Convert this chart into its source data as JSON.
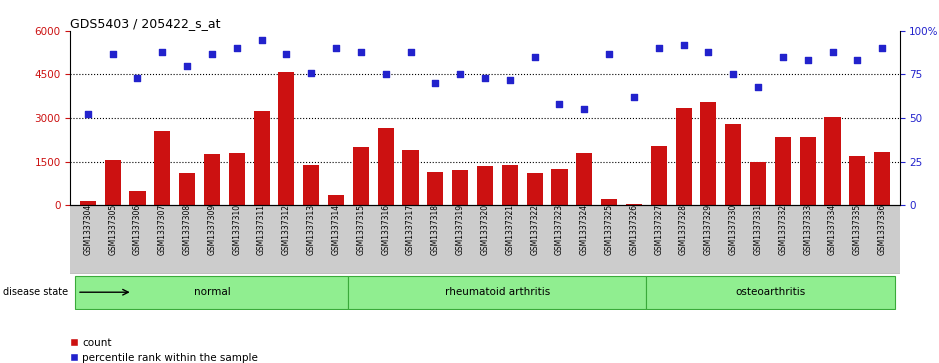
{
  "title": "GDS5403 / 205422_s_at",
  "samples": [
    "GSM1337304",
    "GSM1337305",
    "GSM1337306",
    "GSM1337307",
    "GSM1337308",
    "GSM1337309",
    "GSM1337310",
    "GSM1337311",
    "GSM1337312",
    "GSM1337313",
    "GSM1337314",
    "GSM1337315",
    "GSM1337316",
    "GSM1337317",
    "GSM1337318",
    "GSM1337319",
    "GSM1337320",
    "GSM1337321",
    "GSM1337322",
    "GSM1337323",
    "GSM1337324",
    "GSM1337325",
    "GSM1337326",
    "GSM1337327",
    "GSM1337328",
    "GSM1337329",
    "GSM1337330",
    "GSM1337331",
    "GSM1337332",
    "GSM1337333",
    "GSM1337334",
    "GSM1337335",
    "GSM1337336"
  ],
  "counts": [
    150,
    1570,
    500,
    2550,
    1100,
    1750,
    1800,
    3250,
    4600,
    1380,
    350,
    2000,
    2650,
    1900,
    1150,
    1200,
    1350,
    1380,
    1100,
    1250,
    1780,
    200,
    50,
    2050,
    3350,
    3550,
    2780,
    1500,
    2350,
    2350,
    3050,
    1680,
    1820
  ],
  "percentile_ranks": [
    52,
    87,
    73,
    88,
    80,
    87,
    90,
    95,
    87,
    76,
    90,
    88,
    75,
    88,
    70,
    75,
    73,
    72,
    85,
    58,
    55,
    87,
    62,
    90,
    92,
    88,
    75,
    68,
    85,
    83,
    88,
    83,
    90
  ],
  "groups": [
    {
      "label": "normal",
      "start": 0,
      "end": 11
    },
    {
      "label": "rheumatoid arthritis",
      "start": 11,
      "end": 23
    },
    {
      "label": "osteoarthritis",
      "start": 23,
      "end": 33
    }
  ],
  "bar_color": "#cc1111",
  "dot_color": "#2222cc",
  "left_ylim": [
    0,
    6000
  ],
  "right_ylim": [
    0,
    100
  ],
  "left_yticks": [
    0,
    1500,
    3000,
    4500,
    6000
  ],
  "right_yticks": [
    0,
    25,
    50,
    75,
    100
  ],
  "left_yticklabels": [
    "0",
    "1500",
    "3000",
    "4500",
    "6000"
  ],
  "right_yticklabels": [
    "0",
    "25",
    "50",
    "75",
    "100%"
  ],
  "group_color": "#90ee90",
  "group_border_color": "#3aaa3a",
  "tick_bg_color": "#cccccc",
  "disease_label": "disease state",
  "count_label": "count",
  "percentile_label": "percentile rank within the sample",
  "bg_color": "#ffffff"
}
